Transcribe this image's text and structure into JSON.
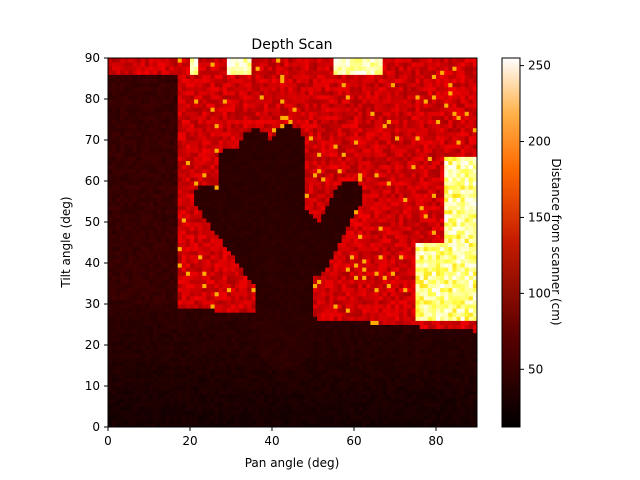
{
  "chart_data": {
    "type": "heatmap",
    "title": "Depth Scan",
    "xlabel": "Pan angle (deg)",
    "ylabel": "Tilt angle (deg)",
    "xlim": [
      0,
      90
    ],
    "ylim": [
      0,
      90
    ],
    "x_ticks": [
      0,
      20,
      40,
      60,
      80
    ],
    "y_ticks": [
      0,
      10,
      20,
      30,
      40,
      50,
      60,
      70,
      80,
      90
    ],
    "colormap": "gist_heat",
    "colorbar": {
      "label": "Distance from scanner (cm)",
      "range": [
        12,
        255
      ],
      "ticks": [
        50,
        100,
        150,
        200,
        250
      ]
    },
    "grid": false,
    "resolution_deg": 1,
    "regions": [
      {
        "name": "floor",
        "value": 18
      },
      {
        "name": "hand",
        "value": 28
      },
      {
        "name": "background-wall",
        "value": 80
      },
      {
        "name": "far-right-objects",
        "value": 200
      }
    ]
  }
}
